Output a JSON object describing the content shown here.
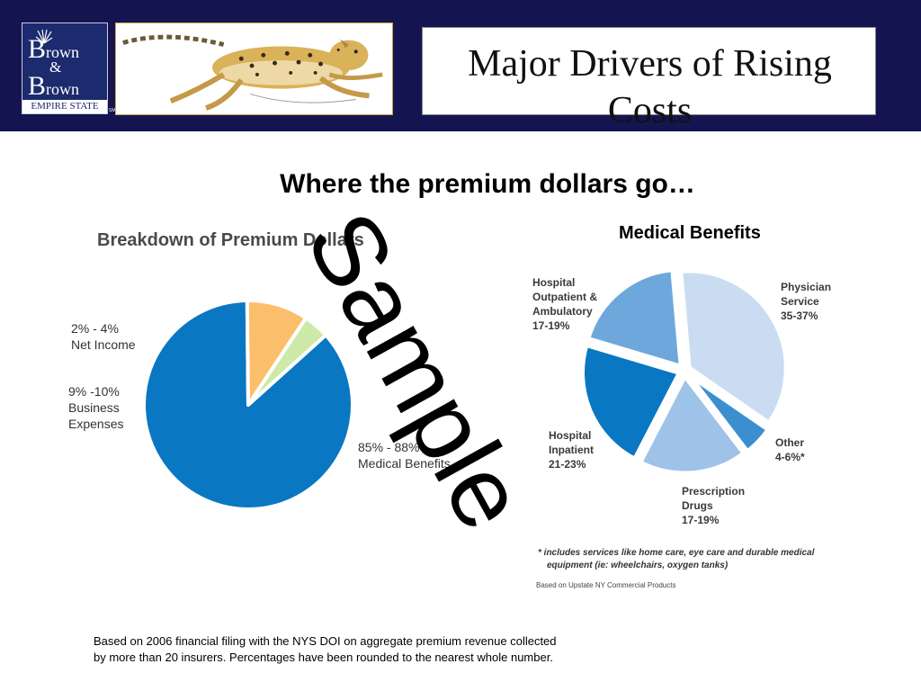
{
  "header": {
    "logo": {
      "line1": "rown",
      "line2": "&",
      "line3": "rown",
      "tagline": "EMPIRE STATE",
      "sm": "SM"
    },
    "title": "Major Drivers of Rising Costs"
  },
  "subtitle": "Where the premium dollars go…",
  "chart_data": [
    {
      "type": "pie",
      "title": "Breakdown of Premium Dollars",
      "labels": [
        "85% - 88% Medical Benefits",
        "9% -10% Business Expenses",
        "2% - 4% Net Income"
      ],
      "values": [
        86.5,
        9.5,
        4
      ],
      "colors": [
        "#0a77c2",
        "#fbbf6b",
        "#cdeaa8"
      ]
    },
    {
      "type": "pie",
      "title": "Medical Benefits",
      "labels": [
        "Physician Service 35-37%",
        "Other 4-6%*",
        "Prescription Drugs 17-19%",
        "Hospital Inpatient 21-23%",
        "Hospital Outpatient & Ambulatory 17-19%"
      ],
      "values": [
        36,
        5,
        18,
        22,
        19
      ],
      "colors": [
        "#c9dcf2",
        "#3b8fd0",
        "#9fc2e8",
        "#0a77c2",
        "#6ea7dc"
      ]
    }
  ],
  "left_chart": {
    "title": "Breakdown of Premium Dollars",
    "labels": {
      "net_income": [
        "2% - 4%",
        "Net Income"
      ],
      "business": [
        "9% -10%",
        "Business",
        "Expenses"
      ],
      "medical": [
        "85%  - 88%",
        "Medical Benefits"
      ]
    }
  },
  "right_chart": {
    "title": "Medical Benefits",
    "labels": {
      "outpatient": [
        "Hospital",
        "Outpatient &",
        "Ambulatory",
        "17-19%"
      ],
      "physician": [
        "Physician",
        "Service",
        "35-37%"
      ],
      "other": [
        "Other",
        "4-6%*"
      ],
      "inpatient": [
        "Hospital",
        "Inpatient",
        "21-23%"
      ],
      "rx": [
        "Prescription",
        "Drugs",
        "17-19%"
      ]
    },
    "note": [
      "* includes services like home care, eye care and durable medical",
      "equipment (ie: wheelchairs, oxygen tanks)"
    ],
    "basis": "Based on Upstate NY Commercial Products"
  },
  "footer": [
    "Based on 2006 financial filing with the NYS DOI on aggregate premium revenue collected",
    "by more than 20 insurers. Percentages have been rounded to the nearest whole number."
  ],
  "watermark": "Sample"
}
